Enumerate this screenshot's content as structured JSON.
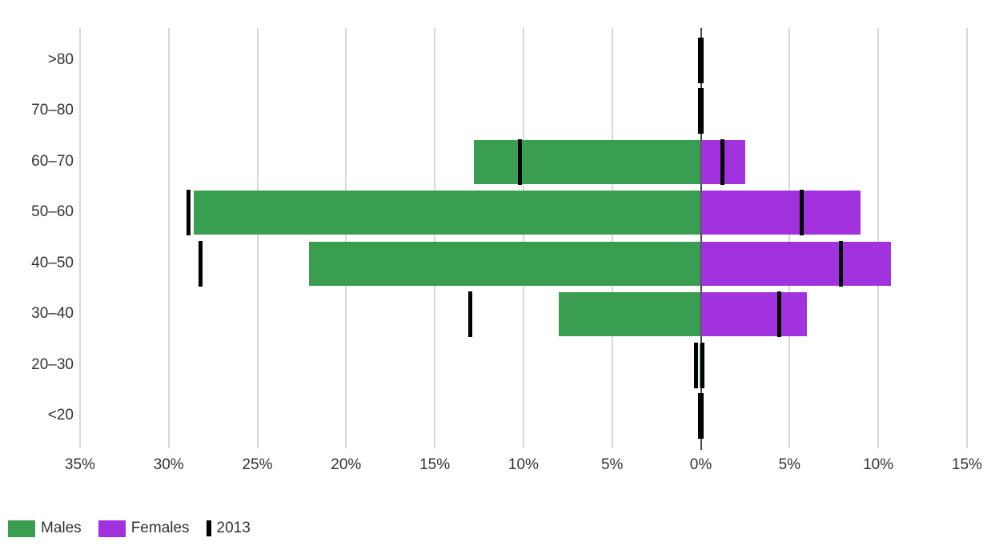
{
  "chart_data": {
    "type": "bar",
    "subtype": "diverging-horizontal-pyramid",
    "title": "",
    "categories": [
      ">80",
      "70–80",
      "60–70",
      "50–60",
      "40–50",
      "30–40",
      "20–30",
      "<20"
    ],
    "series": [
      {
        "name": "Males",
        "side": "left",
        "color": "#3A9E50",
        "values": [
          0,
          0,
          12.8,
          28.6,
          22.1,
          8.0,
          0.08,
          0
        ]
      },
      {
        "name": "Females",
        "side": "right",
        "color": "#A232DE",
        "values": [
          0,
          0,
          2.5,
          9.0,
          10.7,
          6.0,
          0,
          0
        ]
      }
    ],
    "reference_marks": {
      "name": "2013",
      "color": "#000000",
      "males": [
        0.05,
        0.05,
        10.2,
        28.9,
        28.2,
        13.0,
        0.25,
        0.05
      ],
      "females": [
        0.05,
        0.05,
        1.2,
        5.7,
        7.9,
        4.4,
        0.1,
        0.05
      ]
    },
    "x_axis": {
      "min": -35,
      "max": 15,
      "unit": "%",
      "tick_values": [
        -35,
        -30,
        -25,
        -20,
        -15,
        -10,
        -5,
        0,
        5,
        10,
        15
      ],
      "tick_labels": [
        "35%",
        "30%",
        "25%",
        "20%",
        "15%",
        "10%",
        "5%",
        "0%",
        "5%",
        "10%",
        "15%"
      ],
      "grid": true
    },
    "legend": {
      "position": "bottom-left",
      "items": [
        {
          "label": "Males",
          "swatch": "rect",
          "color": "#3A9E50"
        },
        {
          "label": "Females",
          "swatch": "rect",
          "color": "#A232DE"
        },
        {
          "label": "2013",
          "swatch": "vertical-bar",
          "color": "#000000"
        }
      ]
    },
    "colors": {
      "grid": "#D8D8D8",
      "zero_axis": "#444444",
      "text": "#333333",
      "background": "#FFFFFF"
    }
  }
}
